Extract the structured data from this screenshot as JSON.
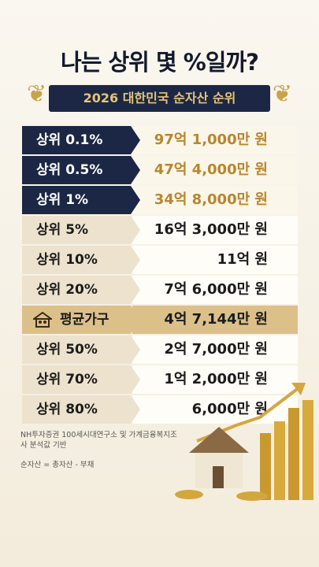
{
  "header": {
    "title": "나는 상위 몇 %일까?",
    "subtitle": "2026 대한민국 순자산 순위"
  },
  "rows": [
    [
      "상위 0.1%",
      "97억 1,000만 원"
    ],
    [
      "상위 0.5%",
      "47억 4,000만 원"
    ],
    [
      "상위 1%",
      "34억 8,000만 원"
    ],
    [
      "상위 5%",
      "16억 3,000만 원"
    ],
    [
      "상위 10%",
      "11억 원"
    ],
    [
      "상위 20%",
      "7억 6,000만 원"
    ],
    [
      "평균가구",
      "4억 7,144만 원"
    ],
    [
      "상위 50%",
      "2억 7,000만 원"
    ],
    [
      "상위 70%",
      "1억 2,000만 원"
    ],
    [
      "상위 80%",
      "6,000만 원"
    ]
  ],
  "notes": {
    "source": "NH투자증권 100세시대연구소 및 가계금융복지조사 분석값 기반",
    "definition": "순자산 = 총자산 - 부채"
  }
}
